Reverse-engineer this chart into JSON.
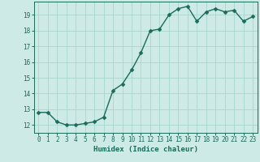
{
  "x": [
    0,
    1,
    2,
    3,
    4,
    5,
    6,
    7,
    8,
    9,
    10,
    11,
    12,
    13,
    14,
    15,
    16,
    17,
    18,
    19,
    20,
    21,
    22,
    23
  ],
  "y": [
    12.8,
    12.8,
    12.2,
    12.0,
    12.0,
    12.1,
    12.2,
    12.5,
    14.2,
    14.6,
    15.5,
    16.6,
    18.0,
    18.1,
    19.0,
    19.4,
    19.55,
    18.6,
    19.2,
    19.4,
    19.2,
    19.3,
    18.6,
    18.9
  ],
  "line_color": "#1a6b5a",
  "marker_color": "#1a6b5a",
  "bg_color": "#ceeae6",
  "grid_color": "#a8d5cf",
  "xlabel": "Humidex (Indice chaleur)",
  "xlim": [
    -0.5,
    23.5
  ],
  "ylim": [
    11.5,
    19.85
  ],
  "xticks": [
    0,
    1,
    2,
    3,
    4,
    5,
    6,
    7,
    8,
    9,
    10,
    11,
    12,
    13,
    14,
    15,
    16,
    17,
    18,
    19,
    20,
    21,
    22,
    23
  ],
  "yticks": [
    12,
    13,
    14,
    15,
    16,
    17,
    18,
    19
  ],
  "xlabel_fontsize": 6.5,
  "tick_fontsize": 5.5,
  "line_width": 1.0,
  "marker_size": 2.5
}
